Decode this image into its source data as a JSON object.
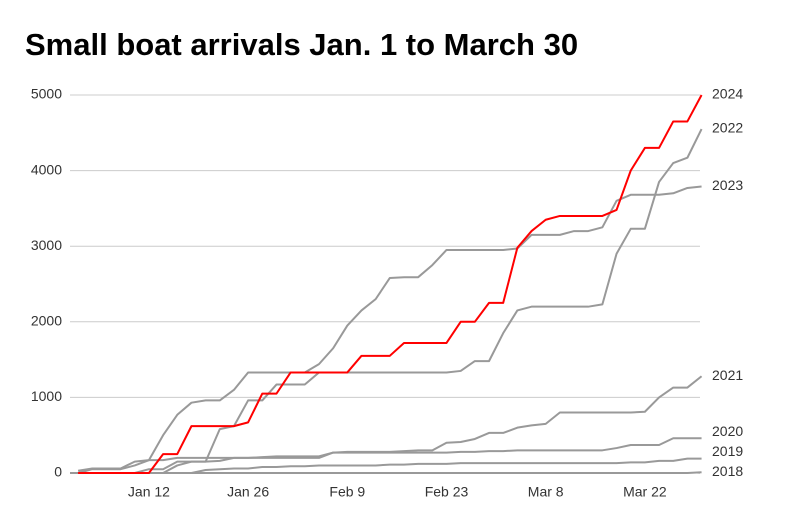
{
  "chart_data": {
    "type": "line",
    "title": "Small boat arrivals Jan. 1 to March 30",
    "categories": [
      null,
      null,
      null,
      null,
      null,
      "Jan 12",
      null,
      null,
      null,
      null,
      null,
      null,
      "Jan 26",
      null,
      null,
      null,
      null,
      null,
      null,
      "Feb 9",
      null,
      null,
      null,
      null,
      null,
      null,
      "Feb 23",
      null,
      null,
      null,
      null,
      null,
      null,
      "Mar 8",
      null,
      null,
      null,
      null,
      null,
      null,
      "Mar 22",
      null,
      null,
      null,
      null
    ],
    "series": [
      {
        "name": "2024",
        "color": "#ff0000",
        "values": [
          0,
          0,
          0,
          0,
          0,
          0,
          250,
          250,
          620,
          620,
          620,
          620,
          670,
          1050,
          1050,
          1330,
          1330,
          1330,
          1330,
          1330,
          1550,
          1550,
          1550,
          1720,
          1720,
          1720,
          1720,
          2000,
          2000,
          2250,
          2250,
          2980,
          3200,
          3350,
          3400,
          3400,
          3400,
          3400,
          3480,
          4000,
          4300,
          4300,
          4650,
          4650,
          5000
        ]
      },
      {
        "name": "2022",
        "color": "#999999",
        "values": [
          0,
          0,
          0,
          0,
          0,
          50,
          50,
          150,
          150,
          150,
          580,
          620,
          960,
          960,
          1170,
          1170,
          1170,
          1330,
          1330,
          1330,
          1330,
          1330,
          1330,
          1330,
          1330,
          1330,
          1330,
          1350,
          1480,
          1480,
          1850,
          2150,
          2200,
          2200,
          2200,
          2200,
          2200,
          2230,
          2900,
          3230,
          3230,
          3850,
          4100,
          4170,
          4550
        ]
      },
      {
        "name": "2023",
        "color": "#999999",
        "values": [
          0,
          50,
          50,
          50,
          100,
          170,
          500,
          770,
          930,
          960,
          960,
          1100,
          1330,
          1330,
          1330,
          1330,
          1330,
          1440,
          1650,
          1950,
          2150,
          2300,
          2580,
          2590,
          2590,
          2750,
          2950,
          2950,
          2950,
          2950,
          2950,
          2970,
          3150,
          3150,
          3150,
          3200,
          3200,
          3250,
          3600,
          3680,
          3680,
          3680,
          3700,
          3770,
          3790
        ]
      },
      {
        "name": "2021",
        "color": "#999999",
        "values": [
          30,
          60,
          60,
          60,
          150,
          170,
          170,
          200,
          200,
          200,
          200,
          200,
          200,
          210,
          220,
          220,
          220,
          220,
          270,
          280,
          280,
          280,
          280,
          290,
          300,
          300,
          400,
          410,
          450,
          530,
          530,
          600,
          630,
          650,
          800,
          800,
          800,
          800,
          800,
          800,
          810,
          1000,
          1130,
          1130,
          1280
        ]
      },
      {
        "name": "2020",
        "color": "#999999",
        "values": [
          0,
          0,
          0,
          0,
          0,
          0,
          0,
          100,
          150,
          150,
          160,
          200,
          200,
          200,
          200,
          200,
          200,
          200,
          270,
          270,
          270,
          270,
          270,
          270,
          270,
          270,
          270,
          280,
          280,
          290,
          290,
          300,
          300,
          300,
          300,
          300,
          300,
          300,
          330,
          370,
          370,
          370,
          460,
          460,
          460
        ]
      },
      {
        "name": "2019",
        "color": "#999999",
        "values": [
          0,
          0,
          0,
          0,
          0,
          0,
          0,
          0,
          0,
          40,
          50,
          60,
          60,
          80,
          80,
          90,
          90,
          100,
          100,
          100,
          100,
          100,
          110,
          110,
          120,
          120,
          120,
          130,
          130,
          130,
          130,
          130,
          130,
          130,
          130,
          130,
          130,
          130,
          130,
          140,
          140,
          160,
          160,
          190,
          190
        ]
      },
      {
        "name": "2018",
        "color": "#999999",
        "values": [
          0,
          0,
          0,
          0,
          0,
          0,
          0,
          0,
          0,
          0,
          0,
          0,
          0,
          0,
          0,
          0,
          0,
          0,
          0,
          0,
          0,
          0,
          0,
          0,
          0,
          0,
          0,
          0,
          0,
          0,
          0,
          0,
          0,
          0,
          0,
          0,
          0,
          0,
          0,
          0,
          0,
          0,
          0,
          0,
          10
        ]
      }
    ],
    "ylim": [
      0,
      5000
    ],
    "yticks": [
      0,
      1000,
      2000,
      3000,
      4000,
      5000
    ],
    "grid": true
  }
}
